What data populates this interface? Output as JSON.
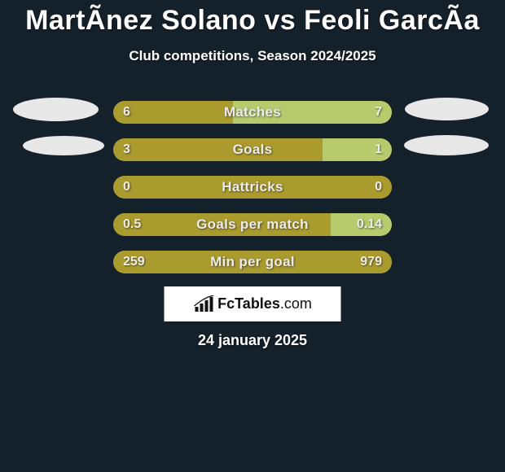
{
  "title": "MartÃ­nez Solano vs Feoli GarcÃ­a",
  "subtitle": "Club competitions, Season 2024/2025",
  "date": "24 january 2025",
  "logo_text_bold": "FcTables",
  "logo_text_thin": ".com",
  "colors": {
    "background": "#15212a",
    "bar_left": "#aa9b2f",
    "bar_right": "#b7cb6e",
    "logo_bg": "#ffffff",
    "text": "#ececec",
    "ellipse": "#e8e8e8"
  },
  "bars": [
    {
      "label": "Matches",
      "left_val": "6",
      "right_val": "7",
      "left_pct": 43,
      "right_pct": 57
    },
    {
      "label": "Goals",
      "left_val": "3",
      "right_val": "1",
      "left_pct": 75,
      "right_pct": 25
    },
    {
      "label": "Hattricks",
      "left_val": "0",
      "right_val": "0",
      "left_pct": 100,
      "right_pct": 0
    },
    {
      "label": "Goals per match",
      "left_val": "0.5",
      "right_val": "0.14",
      "left_pct": 78,
      "right_pct": 22
    },
    {
      "label": "Min per goal",
      "left_val": "259",
      "right_val": "979",
      "left_pct": 100,
      "right_pct": 0
    }
  ]
}
